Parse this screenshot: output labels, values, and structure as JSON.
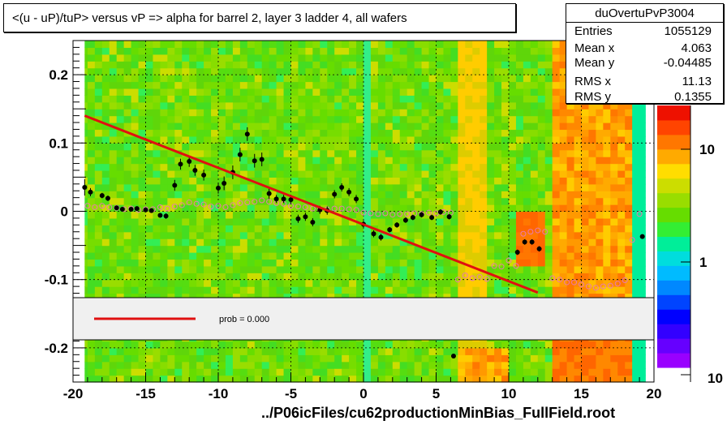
{
  "title": "<(u - uP)/tuP> versus   vP => alpha for barrel 2, layer 3 ladder 4, all wafers",
  "footer": "../P06icFiles/cu62productionMinBias_FullField.root",
  "stats": {
    "name": "duOvertuPvP3004",
    "rows": [
      {
        "label": "Entries",
        "value": "1055129"
      },
      {
        "label": "Mean x",
        "value": "4.063"
      },
      {
        "label": "Mean y",
        "value": "-0.04485"
      },
      {
        "label": "RMS x",
        "value": "11.13"
      },
      {
        "label": "RMS y",
        "value": "0.1355"
      }
    ]
  },
  "legend": {
    "fit_label": "prob = 0.000"
  },
  "colors": {
    "fit_line": "#e01010",
    "profile": "#000000",
    "open_markers": "#e87ab0",
    "legend_box": "#f0f0f0"
  },
  "chart_data": {
    "type": "heatmap",
    "title": "<(u - uP)/tuP> versus   vP => alpha for barrel 2, layer 3 ladder 4, all wafers",
    "xlim": [
      -20,
      20
    ],
    "ylim": [
      -0.25,
      0.25
    ],
    "xticks": [
      "-20",
      "-15",
      "-10",
      "-5",
      "0",
      "5",
      "10",
      "15",
      "20"
    ],
    "yticks": [
      "-0.2",
      "-0.1",
      "0",
      "0.1",
      "0.2"
    ],
    "grid": true,
    "z_scale": "log",
    "z_ticks": [
      "10",
      "1",
      "10"
    ],
    "palette": [
      "#ffffff",
      "#9900ff",
      "#6600ff",
      "#3300ff",
      "#0000ff",
      "#0044ff",
      "#0088ff",
      "#00bbff",
      "#00dddd",
      "#00ee99",
      "#33ee33",
      "#66dd00",
      "#99dd00",
      "#ccdd00",
      "#ffdd00",
      "#ffaa00",
      "#ff7700",
      "#ff4400",
      "#ee1100"
    ],
    "fit": {
      "name": "prob = 0.000",
      "x": [
        -19.2,
        12.0
      ],
      "y": [
        0.14,
        -0.119
      ]
    },
    "profile_points": [
      {
        "x": -19.2,
        "y": 0.035,
        "err": 0.012
      },
      {
        "x": -18.8,
        "y": 0.028,
        "err": 0.006
      },
      {
        "x": -18.0,
        "y": 0.023,
        "err": 0.004
      },
      {
        "x": -17.6,
        "y": 0.019,
        "err": 0.004
      },
      {
        "x": -17.0,
        "y": 0.005,
        "err": 0.003
      },
      {
        "x": -16.6,
        "y": 0.003,
        "err": 0.003
      },
      {
        "x": -16.0,
        "y": 0.003,
        "err": 0.003
      },
      {
        "x": -15.6,
        "y": 0.004,
        "err": 0.003
      },
      {
        "x": -15.0,
        "y": 0.002,
        "err": 0.003
      },
      {
        "x": -14.6,
        "y": 0.001,
        "err": 0.003
      },
      {
        "x": -14.0,
        "y": -0.006,
        "err": 0.003
      },
      {
        "x": -13.6,
        "y": -0.007,
        "err": 0.004
      },
      {
        "x": -13.0,
        "y": 0.038,
        "err": 0.008
      },
      {
        "x": -12.6,
        "y": 0.069,
        "err": 0.008
      },
      {
        "x": -12.0,
        "y": 0.073,
        "err": 0.008
      },
      {
        "x": -11.6,
        "y": 0.06,
        "err": 0.008
      },
      {
        "x": -11.0,
        "y": 0.053,
        "err": 0.008
      },
      {
        "x": -10.0,
        "y": 0.034,
        "err": 0.008
      },
      {
        "x": -9.6,
        "y": 0.041,
        "err": 0.01
      },
      {
        "x": -9.0,
        "y": 0.057,
        "err": 0.01
      },
      {
        "x": -8.5,
        "y": 0.083,
        "err": 0.01
      },
      {
        "x": -8.0,
        "y": 0.113,
        "err": 0.01
      },
      {
        "x": -7.5,
        "y": 0.074,
        "err": 0.01
      },
      {
        "x": -7.0,
        "y": 0.076,
        "err": 0.01
      },
      {
        "x": -6.5,
        "y": 0.026,
        "err": 0.008
      },
      {
        "x": -6.0,
        "y": 0.018,
        "err": 0.006
      },
      {
        "x": -5.5,
        "y": 0.018,
        "err": 0.006
      },
      {
        "x": -5.0,
        "y": 0.017,
        "err": 0.006
      },
      {
        "x": -4.5,
        "y": -0.011,
        "err": 0.006
      },
      {
        "x": -4.0,
        "y": -0.008,
        "err": 0.006
      },
      {
        "x": -3.5,
        "y": -0.016,
        "err": 0.006
      },
      {
        "x": -3.0,
        "y": 0.002,
        "err": 0.006
      },
      {
        "x": -2.5,
        "y": 0.001,
        "err": 0.006
      },
      {
        "x": -2.0,
        "y": 0.025,
        "err": 0.006
      },
      {
        "x": -1.5,
        "y": 0.035,
        "err": 0.006
      },
      {
        "x": -1.0,
        "y": 0.028,
        "err": 0.006
      },
      {
        "x": -0.5,
        "y": 0.018,
        "err": 0.006
      },
      {
        "x": 0.0,
        "y": -0.019,
        "err": 0.005
      },
      {
        "x": 0.7,
        "y": -0.033,
        "err": 0.005
      },
      {
        "x": 1.2,
        "y": -0.038,
        "err": 0.005
      },
      {
        "x": 1.8,
        "y": -0.027,
        "err": 0.004
      },
      {
        "x": 2.3,
        "y": -0.02,
        "err": 0.004
      },
      {
        "x": 2.9,
        "y": -0.013,
        "err": 0.004
      },
      {
        "x": 3.4,
        "y": -0.009,
        "err": 0.004
      },
      {
        "x": 4.0,
        "y": -0.005,
        "err": 0.004
      },
      {
        "x": 4.7,
        "y": -0.009,
        "err": 0.004
      },
      {
        "x": 5.3,
        "y": -0.001,
        "err": 0.004
      },
      {
        "x": 5.9,
        "y": -0.008,
        "err": 0.004
      },
      {
        "x": 10.6,
        "y": -0.06,
        "err": 0.004
      },
      {
        "x": 11.1,
        "y": -0.045,
        "err": 0.004
      },
      {
        "x": 11.6,
        "y": -0.045,
        "err": 0.004
      },
      {
        "x": 12.1,
        "y": -0.055,
        "err": 0.004
      },
      {
        "x": 19.2,
        "y": -0.037,
        "err": 0.003
      },
      {
        "x": 6.2,
        "y": -0.212,
        "err": 0.003
      }
    ],
    "open_points": [
      {
        "x": -19.0,
        "y": 0.008
      },
      {
        "x": -18.5,
        "y": 0.006
      },
      {
        "x": -18.0,
        "y": 0.008
      },
      {
        "x": -17.5,
        "y": 0.006
      },
      {
        "x": -17.0,
        "y": 0.005
      },
      {
        "x": -16.5,
        "y": 0.003
      },
      {
        "x": -16.0,
        "y": 0.004
      },
      {
        "x": -15.5,
        "y": 0.002
      },
      {
        "x": -15.0,
        "y": 0.003
      },
      {
        "x": -14.5,
        "y": 0.003
      },
      {
        "x": -14.0,
        "y": 0.006
      },
      {
        "x": -13.5,
        "y": 0.004
      },
      {
        "x": -13.0,
        "y": 0.007
      },
      {
        "x": -12.5,
        "y": 0.009
      },
      {
        "x": -12.0,
        "y": 0.013
      },
      {
        "x": -11.5,
        "y": 0.011
      },
      {
        "x": -11.0,
        "y": 0.01
      },
      {
        "x": -10.5,
        "y": 0.007
      },
      {
        "x": -10.0,
        "y": 0.008
      },
      {
        "x": -9.5,
        "y": 0.006
      },
      {
        "x": -9.0,
        "y": 0.009
      },
      {
        "x": -8.5,
        "y": 0.012
      },
      {
        "x": -8.0,
        "y": 0.013
      },
      {
        "x": -7.5,
        "y": 0.014
      },
      {
        "x": -7.0,
        "y": 0.016
      },
      {
        "x": -6.5,
        "y": 0.014
      },
      {
        "x": -6.0,
        "y": 0.012
      },
      {
        "x": -5.5,
        "y": 0.011
      },
      {
        "x": -5.0,
        "y": 0.008
      },
      {
        "x": -4.5,
        "y": 0.007
      },
      {
        "x": -4.0,
        "y": 0.006
      },
      {
        "x": -3.5,
        "y": 0.004
      },
      {
        "x": -3.0,
        "y": 0.003
      },
      {
        "x": -2.5,
        "y": 0.003
      },
      {
        "x": -2.0,
        "y": 0.004
      },
      {
        "x": -1.5,
        "y": 0.004
      },
      {
        "x": -1.0,
        "y": 0.003
      },
      {
        "x": -0.5,
        "y": 0.002
      },
      {
        "x": 0.0,
        "y": -0.002
      },
      {
        "x": 0.5,
        "y": -0.003
      },
      {
        "x": 1.0,
        "y": -0.004
      },
      {
        "x": 1.5,
        "y": -0.003
      },
      {
        "x": 2.0,
        "y": -0.005
      },
      {
        "x": 2.5,
        "y": -0.004
      },
      {
        "x": 3.0,
        "y": -0.004
      },
      {
        "x": 3.5,
        "y": -0.003
      },
      {
        "x": 4.0,
        "y": -0.004
      },
      {
        "x": 4.5,
        "y": -0.002
      },
      {
        "x": 5.0,
        "y": -0.003
      },
      {
        "x": 5.5,
        "y": -0.001
      },
      {
        "x": 6.0,
        "y": -0.002
      },
      {
        "x": 6.5,
        "y": -0.1
      },
      {
        "x": 7.0,
        "y": -0.094
      },
      {
        "x": 7.5,
        "y": -0.098
      },
      {
        "x": 8.0,
        "y": -0.096
      },
      {
        "x": 8.5,
        "y": -0.099
      },
      {
        "x": 9.0,
        "y": -0.08
      },
      {
        "x": 9.5,
        "y": -0.081
      },
      {
        "x": 10.0,
        "y": -0.072
      },
      {
        "x": 10.5,
        "y": -0.08
      },
      {
        "x": 11.0,
        "y": -0.033
      },
      {
        "x": 11.5,
        "y": -0.03
      },
      {
        "x": 12.0,
        "y": -0.028
      },
      {
        "x": 12.5,
        "y": -0.03
      },
      {
        "x": 13.0,
        "y": -0.098
      },
      {
        "x": 13.5,
        "y": -0.1
      },
      {
        "x": 14.0,
        "y": -0.104
      },
      {
        "x": 14.5,
        "y": -0.104
      },
      {
        "x": 15.0,
        "y": -0.107
      },
      {
        "x": 15.5,
        "y": -0.11
      },
      {
        "x": 16.0,
        "y": -0.112
      },
      {
        "x": 16.5,
        "y": -0.11
      },
      {
        "x": 17.0,
        "y": -0.109
      },
      {
        "x": 17.5,
        "y": -0.106
      },
      {
        "x": 18.0,
        "y": -0.101
      },
      {
        "x": 18.5,
        "y": -0.042
      },
      {
        "x": 19.0,
        "y": -0.004
      }
    ]
  }
}
